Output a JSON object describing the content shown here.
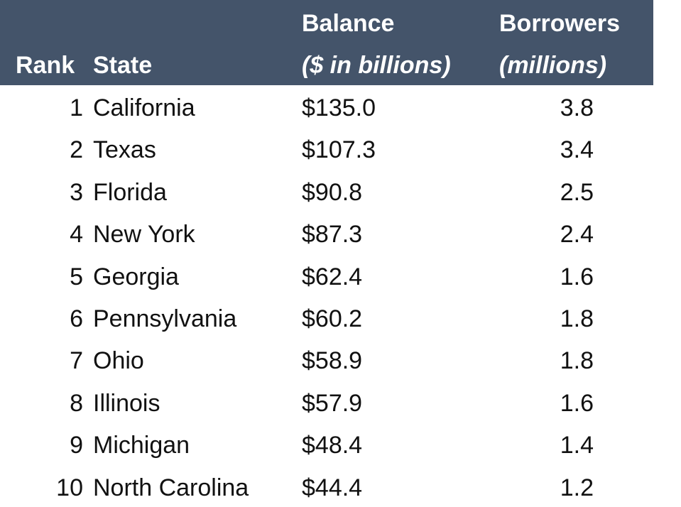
{
  "table": {
    "header": {
      "rank": "Rank",
      "state": "State",
      "balance": [
        "Balance",
        "($ in billions)"
      ],
      "borrowers": [
        "Borrowers",
        "(millions)"
      ]
    },
    "rows": [
      [
        "1",
        "California",
        "$135.0",
        "3.8"
      ],
      [
        "2",
        "Texas",
        "$107.3",
        "3.4"
      ],
      [
        "3",
        "Florida",
        "$90.8",
        "2.5"
      ],
      [
        "4",
        "New York",
        "$87.3",
        "2.4"
      ],
      [
        "5",
        "Georgia",
        "$62.4",
        "1.6"
      ],
      [
        "6",
        "Pennsylvania",
        "$60.2",
        "1.8"
      ],
      [
        "7",
        "Ohio",
        "$58.9",
        "1.8"
      ],
      [
        "8",
        "Illinois",
        "$57.9",
        "1.6"
      ],
      [
        "9",
        "Michigan",
        "$48.4",
        "1.4"
      ],
      [
        "10",
        "North Carolina",
        "$44.4",
        "1.2"
      ]
    ]
  }
}
